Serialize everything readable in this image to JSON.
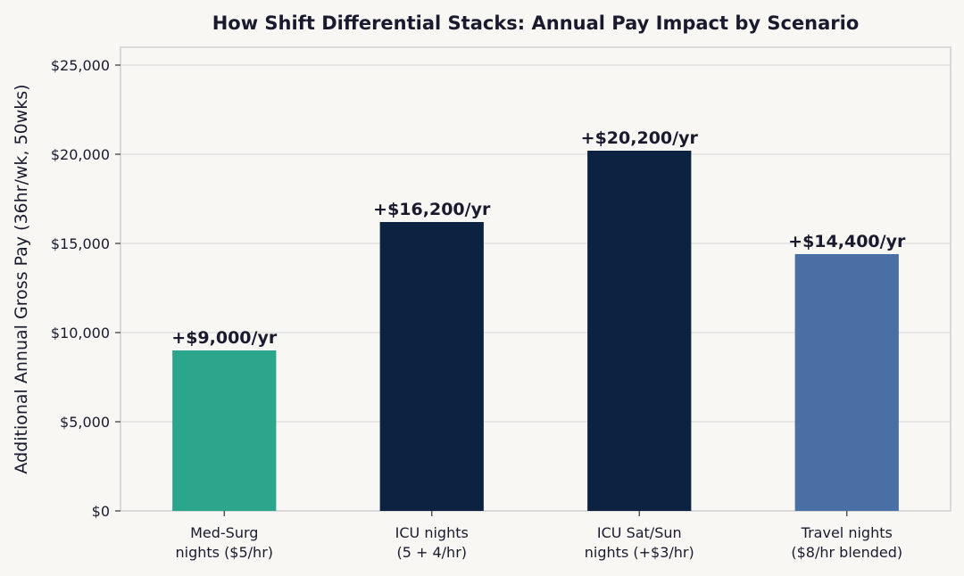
{
  "chart_data": {
    "type": "bar",
    "title": "How Shift Differential Stacks: Annual Pay Impact by Scenario",
    "xlabel": "",
    "ylabel": "Additional Annual Gross Pay (36hr/wk, 50wks)",
    "ylim": [
      0,
      26000
    ],
    "yticks": [
      0,
      5000,
      10000,
      15000,
      20000,
      25000
    ],
    "ytick_labels": [
      "$0",
      "$5,000",
      "$10,000",
      "$15,000",
      "$20,000",
      "$25,000"
    ],
    "grid": true,
    "categories": [
      [
        "Med-Surg",
        "nights ($5/hr)"
      ],
      [
        "ICU nights",
        "(5 + 4/hr)"
      ],
      [
        "ICU Sat/Sun",
        "nights (+$3/hr)"
      ],
      [
        "Travel nights",
        "($8/hr blended)"
      ]
    ],
    "values": [
      9000,
      16200,
      20200,
      14400
    ],
    "value_labels": [
      "+$9,000/yr",
      "+$16,200/yr",
      "+$20,200/yr",
      "+$14,400/yr"
    ],
    "colors": [
      "#2ca58d",
      "#0b2341",
      "#0b2341",
      "#4a6fa5"
    ]
  }
}
